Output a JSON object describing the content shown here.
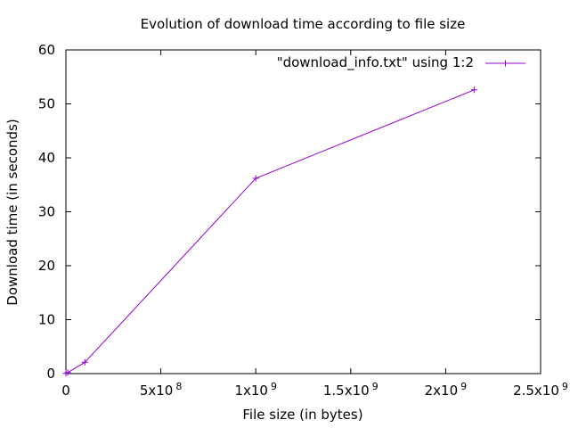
{
  "chart_data": {
    "type": "line",
    "title": "Evolution of download time according to file size",
    "xlabel": "File size (in bytes)",
    "ylabel": "Download time (in seconds)",
    "xlim": [
      0,
      2500000000
    ],
    "ylim": [
      0,
      60
    ],
    "grid": false,
    "legend_position": "top-right",
    "x_ticks": [
      {
        "value": 0,
        "base": "0",
        "exp": ""
      },
      {
        "value": 500000000,
        "base": "5x10",
        "exp": "8"
      },
      {
        "value": 1000000000,
        "base": "1x10",
        "exp": "9"
      },
      {
        "value": 1500000000,
        "base": "1.5x10",
        "exp": "9"
      },
      {
        "value": 2000000000,
        "base": "2x10",
        "exp": "9"
      },
      {
        "value": 2500000000,
        "base": "2.5x10",
        "exp": "9"
      }
    ],
    "y_ticks": [
      0,
      10,
      20,
      30,
      40,
      50,
      60
    ],
    "series": [
      {
        "name": "\"download_info.txt\" using 1:2",
        "color": "#9400d3",
        "marker": "plus",
        "x": [
          0,
          10000000,
          100000000,
          1000000000,
          2150000000
        ],
        "y": [
          0.05,
          0.2,
          2.1,
          36.2,
          52.6
        ]
      }
    ]
  }
}
